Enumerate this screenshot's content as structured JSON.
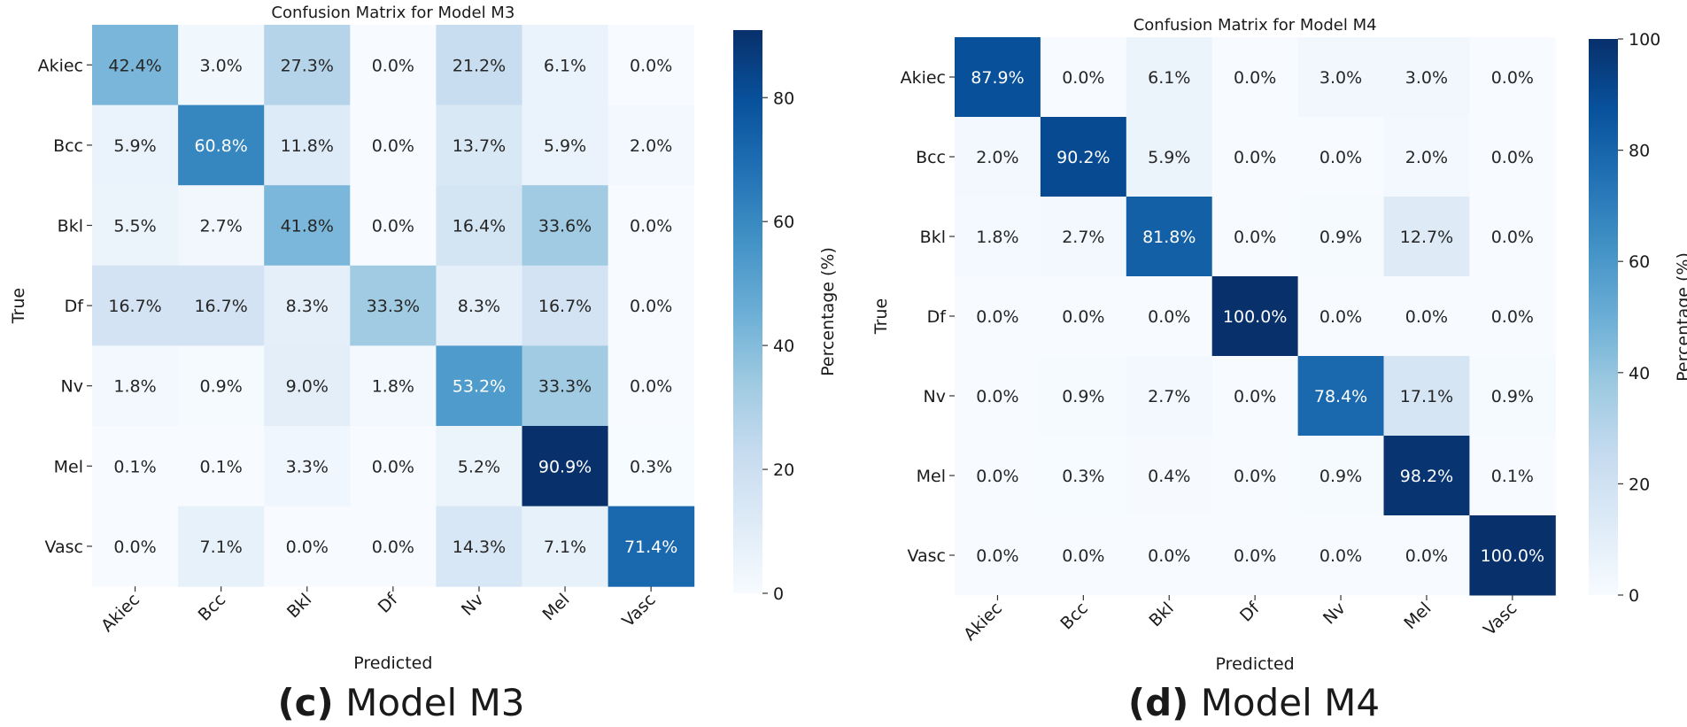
{
  "figure": {
    "captions": [
      {
        "letter": "(c)",
        "text": " Model M3"
      },
      {
        "letter": "(d)",
        "text": " Model M4"
      }
    ]
  },
  "colormap": {
    "name": "Blues",
    "stops": [
      "#f7fbff",
      "#deebf7",
      "#c6dbef",
      "#9ecae1",
      "#6baed6",
      "#4292c6",
      "#2171b5",
      "#08519c",
      "#08306b"
    ]
  },
  "chart_data": [
    {
      "type": "heatmap",
      "title": "Confusion Matrix for Model M3",
      "xlabel": "Predicted",
      "ylabel": "True",
      "x_categories": [
        "Akiec",
        "Bcc",
        "Bkl",
        "Df",
        "Nv",
        "Mel",
        "Vasc"
      ],
      "y_categories": [
        "Akiec",
        "Bcc",
        "Bkl",
        "Df",
        "Nv",
        "Mel",
        "Vasc"
      ],
      "values": [
        [
          42.4,
          3.0,
          27.3,
          0.0,
          21.2,
          6.1,
          0.0
        ],
        [
          5.9,
          60.8,
          11.8,
          0.0,
          13.7,
          5.9,
          2.0
        ],
        [
          5.5,
          2.7,
          41.8,
          0.0,
          16.4,
          33.6,
          0.0
        ],
        [
          16.7,
          16.7,
          8.3,
          33.3,
          8.3,
          16.7,
          0.0
        ],
        [
          1.8,
          0.9,
          9.0,
          1.8,
          53.2,
          33.3,
          0.0
        ],
        [
          0.1,
          0.1,
          3.3,
          0.0,
          5.2,
          90.9,
          0.3
        ],
        [
          0.0,
          7.1,
          0.0,
          0.0,
          14.3,
          7.1,
          71.4
        ]
      ],
      "colorbar": {
        "label": "Percentage (%)",
        "range": [
          0,
          90.9
        ],
        "ticks": [
          0,
          20,
          40,
          60,
          80
        ]
      },
      "value_format": "%"
    },
    {
      "type": "heatmap",
      "title": "Confusion Matrix for Model M4",
      "xlabel": "Predicted",
      "ylabel": "True",
      "x_categories": [
        "Akiec",
        "Bcc",
        "Bkl",
        "Df",
        "Nv",
        "Mel",
        "Vasc"
      ],
      "y_categories": [
        "Akiec",
        "Bcc",
        "Bkl",
        "Df",
        "Nv",
        "Mel",
        "Vasc"
      ],
      "values": [
        [
          87.9,
          0.0,
          6.1,
          0.0,
          3.0,
          3.0,
          0.0
        ],
        [
          2.0,
          90.2,
          5.9,
          0.0,
          0.0,
          2.0,
          0.0
        ],
        [
          1.8,
          2.7,
          81.8,
          0.0,
          0.9,
          12.7,
          0.0
        ],
        [
          0.0,
          0.0,
          0.0,
          100.0,
          0.0,
          0.0,
          0.0
        ],
        [
          0.0,
          0.9,
          2.7,
          0.0,
          78.4,
          17.1,
          0.9
        ],
        [
          0.0,
          0.3,
          0.4,
          0.0,
          0.9,
          98.2,
          0.1
        ],
        [
          0.0,
          0.0,
          0.0,
          0.0,
          0.0,
          0.0,
          100.0
        ]
      ],
      "colorbar": {
        "label": "Percentage (%)",
        "range": [
          0,
          100
        ],
        "ticks": [
          0,
          20,
          40,
          60,
          80,
          100
        ]
      },
      "value_format": "%"
    }
  ]
}
